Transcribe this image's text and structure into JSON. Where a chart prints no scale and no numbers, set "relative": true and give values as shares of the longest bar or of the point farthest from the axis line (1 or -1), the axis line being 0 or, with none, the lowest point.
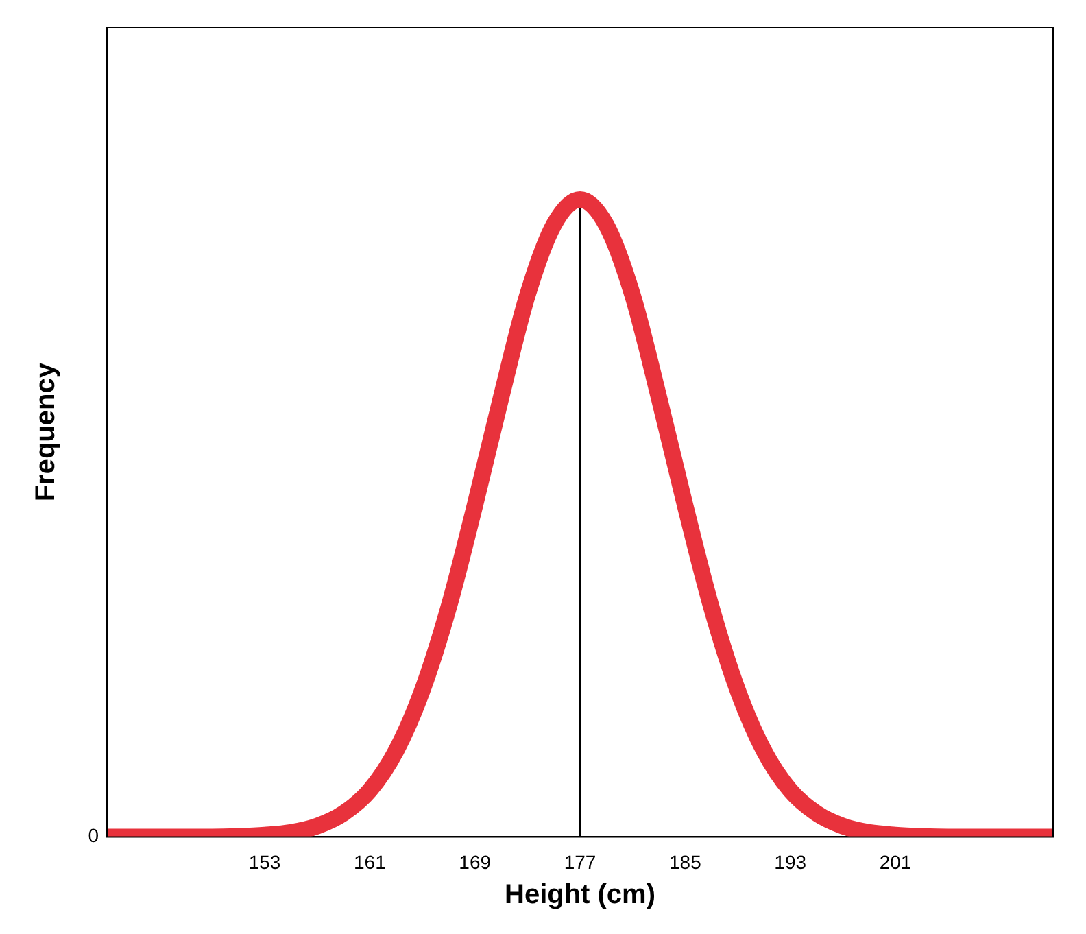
{
  "chart_data": {
    "type": "line",
    "xlabel": "Height (cm)",
    "ylabel": "Frequency",
    "relative": true,
    "x": [
      141,
      143,
      145,
      147,
      149,
      151,
      153,
      155,
      157,
      159,
      161,
      163,
      165,
      167,
      169,
      171,
      173,
      175,
      177,
      179,
      181,
      183,
      185,
      187,
      189,
      191,
      193,
      195,
      197,
      199,
      201,
      203,
      205,
      207,
      209,
      211,
      213
    ],
    "series": [
      {
        "color": "#e8323c",
        "values": [
          0,
          0,
          0,
          0,
          0,
          0.001,
          0.003,
          0.007,
          0.017,
          0.037,
          0.073,
          0.135,
          0.23,
          0.36,
          0.52,
          0.69,
          0.85,
          0.96,
          1,
          0.96,
          0.85,
          0.69,
          0.52,
          0.36,
          0.23,
          0.135,
          0.073,
          0.037,
          0.017,
          0.007,
          0.003,
          0.001,
          0,
          0,
          0,
          0,
          0
        ]
      }
    ],
    "xlim": [
      141,
      213
    ],
    "xticks": [
      153,
      161,
      169,
      177,
      185,
      193,
      201
    ],
    "ref_lines": [
      {
        "axis": "x",
        "value": 177,
        "color": "#000000"
      }
    ],
    "annotations": [
      "0"
    ],
    "marker": "none",
    "line_style": "solid",
    "grid": false,
    "legend": false
  }
}
